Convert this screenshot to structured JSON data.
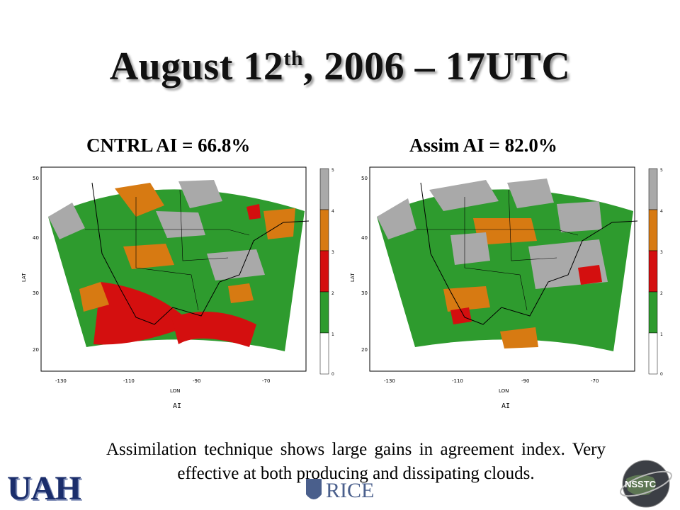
{
  "slide": {
    "title_main": "August 12",
    "title_sup": "th",
    "title_rest": ", 2006 – 17UTC",
    "caption": "Assimilation technique shows large gains in agreement index.  Very effective at both producing and dissipating clouds."
  },
  "panels": [
    {
      "title": "CNTRL AI = 66.8%",
      "colorbar_label": "AI"
    },
    {
      "title": "Assim AI = 82.0%",
      "colorbar_label": "AI"
    }
  ],
  "map_axes": {
    "ylabel": "LAT",
    "xlabel": "LON",
    "lat_ticks": [
      "50",
      "40",
      "30",
      "20"
    ],
    "lon_ticks": [
      "-130",
      "-110",
      "-90",
      "-70"
    ],
    "colorbar_ticks": [
      "5",
      "4",
      "3",
      "2",
      "1",
      "0"
    ]
  },
  "colors": {
    "ai_1_2": "#2e9b2e",
    "ai_2_3": "#d40f0f",
    "ai_3_4": "#d77a12",
    "ai_4_5": "#a9a9a9",
    "ai_0_1": "#ffffff"
  },
  "logos": {
    "uah": "UAH",
    "rice": "RICE",
    "nsstc": "NSSTC"
  }
}
